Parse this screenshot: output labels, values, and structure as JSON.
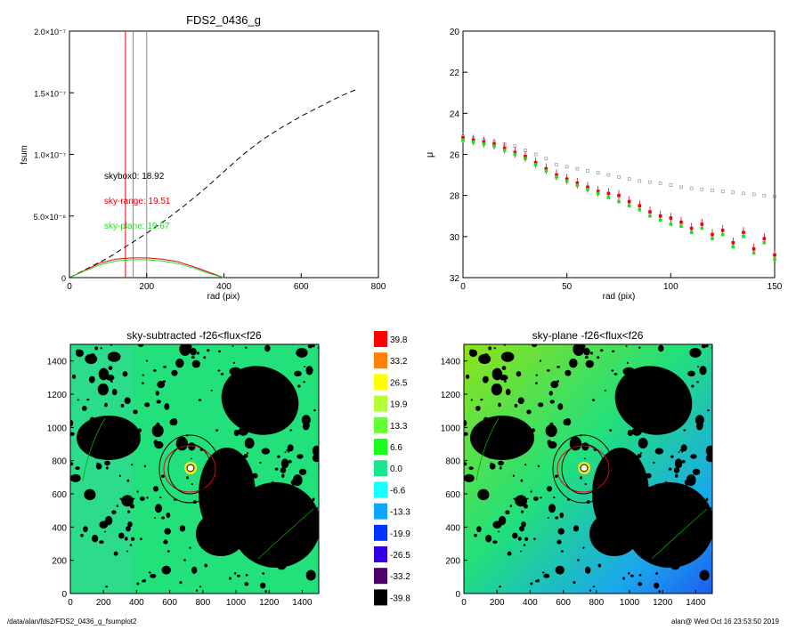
{
  "footer": {
    "path": "/data/alan/fds2/FDS2_0436_g_fsumplot2",
    "user_time": "alan@  Wed Oct 16 23:53:50 2019"
  },
  "colors": {
    "red": "#e8000b",
    "green": "#22dd22",
    "gray": "#888888",
    "black": "#000000"
  },
  "chart_data": [
    {
      "type": "line",
      "title": "FDS2_0436_g",
      "xlabel": "rad (pix)",
      "ylabel": "fsum",
      "xlim": [
        0,
        800
      ],
      "ylim": [
        0,
        2e-07
      ],
      "xticks": [
        "0",
        "200",
        "400",
        "600",
        "800"
      ],
      "xtick_values": [
        0,
        200,
        400,
        600,
        800
      ],
      "yticks": [
        "0",
        "5.0×10⁻⁸",
        "1.0×10⁻⁷",
        "1.5×10⁻⁷",
        "2.0×10⁻⁷"
      ],
      "ytick_values": [
        0,
        5e-08,
        1e-07,
        1.5e-07,
        2e-07
      ],
      "vlines": [
        {
          "x": 145,
          "color": "red"
        },
        {
          "x": 165,
          "color": "gray"
        },
        {
          "x": 200,
          "color": "gray"
        }
      ],
      "series": [
        {
          "name": "cumulative",
          "style": "dashed",
          "color": "black",
          "x": [
            0,
            50,
            100,
            150,
            200,
            250,
            300,
            350,
            400,
            450,
            500,
            550,
            600,
            650,
            700,
            745
          ],
          "y": [
            0,
            8e-09,
            1.6e-08,
            2.6e-08,
            3.6e-08,
            4.7e-08,
            5.9e-08,
            7.2e-08,
            8.6e-08,
            1e-07,
            1.12e-07,
            1.22e-07,
            1.31e-07,
            1.39e-07,
            1.47e-07,
            1.53e-07
          ]
        },
        {
          "name": "sky-range",
          "style": "solid",
          "color": "red",
          "x": [
            0,
            40,
            80,
            120,
            160,
            200,
            240,
            280,
            320,
            360,
            400
          ],
          "y": [
            0,
            6e-09,
            1.2e-08,
            1.5e-08,
            1.6e-08,
            1.6e-08,
            1.5e-08,
            1.3e-08,
            9e-09,
            4.5e-09,
            0
          ]
        },
        {
          "name": "sky-plane",
          "style": "solid",
          "color": "green",
          "x": [
            0,
            40,
            80,
            120,
            160,
            200,
            240,
            280,
            320,
            360,
            400
          ],
          "y": [
            0,
            5.5e-09,
            1.05e-08,
            1.35e-08,
            1.45e-08,
            1.45e-08,
            1.35e-08,
            1.15e-08,
            8e-09,
            3.5e-09,
            0
          ]
        }
      ],
      "annotations": [
        {
          "text": "skybox0: 18.92",
          "color": "black"
        },
        {
          "text": "sky-range: 19.51",
          "color": "red"
        },
        {
          "text": "sky-plane: 19.67",
          "color": "green"
        }
      ]
    },
    {
      "type": "scatter",
      "title": "",
      "xlabel": "rad (pix)",
      "ylabel": "μ",
      "xlim": [
        0,
        150
      ],
      "ylim": [
        32,
        20
      ],
      "xticks": [
        "0",
        "50",
        "100",
        "150"
      ],
      "xtick_values": [
        0,
        50,
        100,
        150
      ],
      "yticks": [
        "20",
        "22",
        "24",
        "26",
        "28",
        "30",
        "32"
      ],
      "ytick_values": [
        20,
        22,
        24,
        26,
        28,
        30,
        32
      ],
      "series": [
        {
          "name": "skybox0",
          "color": "gray",
          "x": [
            0,
            5,
            10,
            15,
            20,
            25,
            30,
            35,
            40,
            45,
            50,
            55,
            60,
            65,
            70,
            75,
            80,
            85,
            90,
            95,
            100,
            105,
            110,
            115,
            120,
            125,
            130,
            135,
            140,
            145,
            150
          ],
          "y": [
            25.1,
            25.2,
            25.3,
            25.4,
            25.5,
            25.6,
            25.8,
            26.0,
            26.2,
            26.5,
            26.6,
            26.7,
            26.8,
            26.9,
            27.0,
            27.1,
            27.2,
            27.3,
            27.35,
            27.4,
            27.5,
            27.6,
            27.65,
            27.7,
            27.75,
            27.8,
            27.85,
            27.9,
            27.95,
            28.0,
            28.05
          ]
        },
        {
          "name": "sky-range",
          "color": "red",
          "x": [
            0,
            5,
            10,
            15,
            20,
            25,
            30,
            35,
            40,
            45,
            50,
            55,
            60,
            65,
            70,
            75,
            80,
            85,
            90,
            95,
            100,
            105,
            110,
            115,
            120,
            125,
            130,
            135,
            140,
            145,
            150
          ],
          "y": [
            25.2,
            25.3,
            25.4,
            25.5,
            25.7,
            25.9,
            26.1,
            26.4,
            26.7,
            27.0,
            27.2,
            27.4,
            27.6,
            27.8,
            27.9,
            28.0,
            28.3,
            28.5,
            28.8,
            29.0,
            29.1,
            29.3,
            29.6,
            29.4,
            29.9,
            29.7,
            30.3,
            29.8,
            30.6,
            30.1,
            30.9
          ]
        },
        {
          "name": "sky-plane",
          "color": "green",
          "x": [
            0,
            5,
            10,
            15,
            20,
            25,
            30,
            35,
            40,
            45,
            50,
            55,
            60,
            65,
            70,
            75,
            80,
            85,
            90,
            95,
            100,
            105,
            110,
            115,
            120,
            125,
            130,
            135,
            140,
            145,
            150
          ],
          "y": [
            25.3,
            25.4,
            25.5,
            25.6,
            25.8,
            26.0,
            26.2,
            26.5,
            26.8,
            27.1,
            27.3,
            27.5,
            27.7,
            27.9,
            28.1,
            28.3,
            28.5,
            28.7,
            29.0,
            29.2,
            29.4,
            29.5,
            29.8,
            29.6,
            30.1,
            29.9,
            30.5,
            30.0,
            30.8,
            30.3,
            31.1
          ]
        }
      ]
    },
    {
      "type": "heatmap",
      "title": "sky-subtracted -f26<flux<f26",
      "xlim": [
        0,
        1500
      ],
      "ylim": [
        0,
        1500
      ],
      "xticks": [
        "0",
        "200",
        "400",
        "600",
        "800",
        "1000",
        "1200",
        "1400"
      ],
      "xtick_values": [
        0,
        200,
        400,
        600,
        800,
        1000,
        1200,
        1400
      ],
      "yticks": [
        "0",
        "200",
        "400",
        "600",
        "800",
        "1000",
        "1200",
        "1400"
      ],
      "ytick_values": [
        0,
        200,
        400,
        600,
        800,
        1000,
        1200,
        1400
      ],
      "background": "uniform-green"
    },
    {
      "type": "colorbar",
      "labels": [
        "39.8",
        "33.2",
        "26.5",
        "19.9",
        "13.3",
        "6.6",
        "0.0",
        "-6.6",
        "-13.3",
        "-19.9",
        "-26.5",
        "-33.2",
        "-39.8"
      ],
      "colors": [
        "#ff0000",
        "#ff7f00",
        "#ffff00",
        "#b2ff33",
        "#66ff33",
        "#1aff1a",
        "#1ae68c",
        "#1affff",
        "#0da6ff",
        "#0033ff",
        "#3300e6",
        "#4d006b",
        "#000000"
      ]
    },
    {
      "type": "heatmap",
      "title": "sky-plane -f26<flux<f26",
      "xlim": [
        0,
        1500
      ],
      "ylim": [
        0,
        1500
      ],
      "xticks": [
        "0",
        "200",
        "400",
        "600",
        "800",
        "1000",
        "1200",
        "1400"
      ],
      "xtick_values": [
        0,
        200,
        400,
        600,
        800,
        1000,
        1200,
        1400
      ],
      "yticks": [
        "0",
        "200",
        "400",
        "600",
        "800",
        "1000",
        "1200",
        "1400"
      ],
      "ytick_values": [
        0,
        200,
        400,
        600,
        800,
        1000,
        1200,
        1400
      ],
      "background": "green-to-blue-gradient"
    }
  ]
}
